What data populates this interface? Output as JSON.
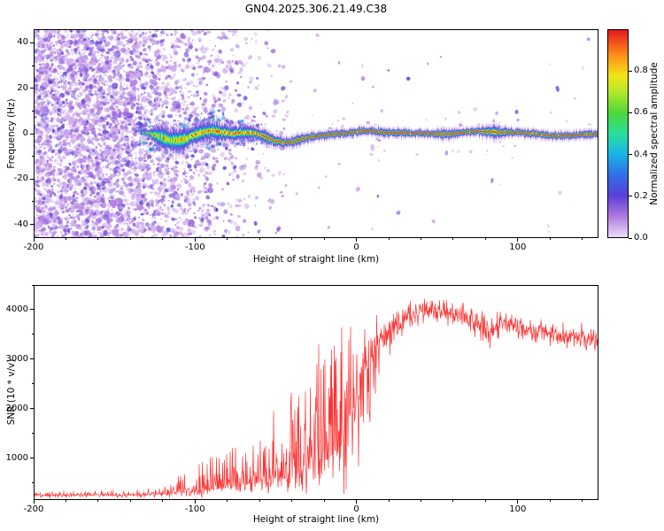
{
  "title": "GN04.2025.306.21.49.C38",
  "chart_data": [
    {
      "type": "heatmap",
      "title": "",
      "xlabel": "Height of straight line (km)",
      "ylabel": "Frequency (Hz)",
      "xlim": [
        -200,
        150
      ],
      "ylim": [
        -46,
        46
      ],
      "xticks": [
        [
          -200,
          "-200"
        ],
        [
          -100,
          "-100"
        ],
        [
          0,
          "0"
        ],
        [
          100,
          "100"
        ]
      ],
      "yticks": [
        [
          -40,
          "-40"
        ],
        [
          -20,
          "-20"
        ],
        [
          0,
          "0"
        ],
        [
          20,
          "20"
        ],
        [
          40,
          "40"
        ]
      ],
      "grid": false,
      "colorbar": {
        "label": "Normalized spectral amplitude",
        "range": [
          0,
          1
        ],
        "ticks": [
          [
            0,
            "0.0"
          ],
          [
            0.2,
            "0.2"
          ],
          [
            0.4,
            "0.4"
          ],
          [
            0.6,
            "0.6"
          ],
          [
            0.8,
            "0.8"
          ]
        ]
      },
      "colormap": [
        [
          0,
          "#eadcf7"
        ],
        [
          0.1,
          "#b07ae0"
        ],
        [
          0.2,
          "#5a3fd8"
        ],
        [
          0.3,
          "#2f6fe8"
        ],
        [
          0.4,
          "#17b4e6"
        ],
        [
          0.5,
          "#2adf9a"
        ],
        [
          0.6,
          "#4ed63c"
        ],
        [
          0.7,
          "#b4e82a"
        ],
        [
          0.78,
          "#f2e318"
        ],
        [
          0.88,
          "#ff8c1a"
        ],
        [
          1,
          "#e3191c"
        ]
      ],
      "features": {
        "description": "Low-amplitude purple speckle noise fills the panel left of about -60 km (densest left of -130 km). A high-amplitude carrier trace runs near 0 Hz from about -130 km to +150 km: broad, meandering (about +/-5 Hz) and speckled with blue/cyan/green until about -55 km, then a narrow straight band with purple fringe, green/yellow sheath and a saturated red core; slight widening bump near +85 km.",
        "carrier_trace_y_hz": 0,
        "carrier_trace_x_start_km": -130,
        "noise_fadeout_x_km": -60
      }
    },
    {
      "type": "line",
      "title": "",
      "xlabel": "Height of straight line (km)",
      "ylabel": "SNR (10 * v/v)",
      "xlim": [
        -200,
        150
      ],
      "ylim": [
        150,
        4500
      ],
      "xticks": [
        [
          -200,
          "-200"
        ],
        [
          -100,
          "-100"
        ],
        [
          0,
          "0"
        ],
        [
          100,
          "100"
        ]
      ],
      "yticks": [
        [
          1000,
          "1000"
        ],
        [
          2000,
          "2000"
        ],
        [
          3000,
          "3000"
        ],
        [
          4000,
          "4000"
        ]
      ],
      "grid": false,
      "series": [
        {
          "name": "SNR",
          "color": "#ff3333",
          "x_km": [
            -200,
            -170,
            -140,
            -120,
            -100,
            -85,
            -70,
            -55,
            -45,
            -35,
            -25,
            -15,
            -8,
            -3,
            0,
            3,
            6,
            10,
            15,
            20,
            30,
            40,
            50,
            60,
            70,
            80,
            85,
            90,
            100,
            110,
            120,
            130,
            140,
            150
          ],
          "median": [
            250,
            250,
            255,
            270,
            330,
            380,
            450,
            550,
            620,
            720,
            850,
            1050,
            1400,
            2000,
            2400,
            2700,
            2900,
            3200,
            3450,
            3600,
            3850,
            4000,
            3950,
            3900,
            3850,
            3650,
            3550,
            3750,
            3650,
            3550,
            3550,
            3450,
            3450,
            3350
          ],
          "spike_up": [
            70,
            70,
            90,
            150,
            550,
            900,
            950,
            1450,
            1500,
            2000,
            2500,
            2850,
            2700,
            2100,
            1500,
            1100,
            800,
            550,
            420,
            330,
            260,
            230,
            230,
            230,
            240,
            280,
            280,
            240,
            240,
            240,
            240,
            240,
            240,
            240
          ],
          "spike_down": [
            50,
            50,
            60,
            80,
            130,
            160,
            220,
            320,
            380,
            450,
            550,
            750,
            1150,
            1800,
            2200,
            2400,
            2000,
            1300,
            700,
            450,
            330,
            280,
            280,
            300,
            320,
            420,
            420,
            300,
            280,
            280,
            280,
            280,
            270,
            260
          ]
        }
      ]
    }
  ]
}
